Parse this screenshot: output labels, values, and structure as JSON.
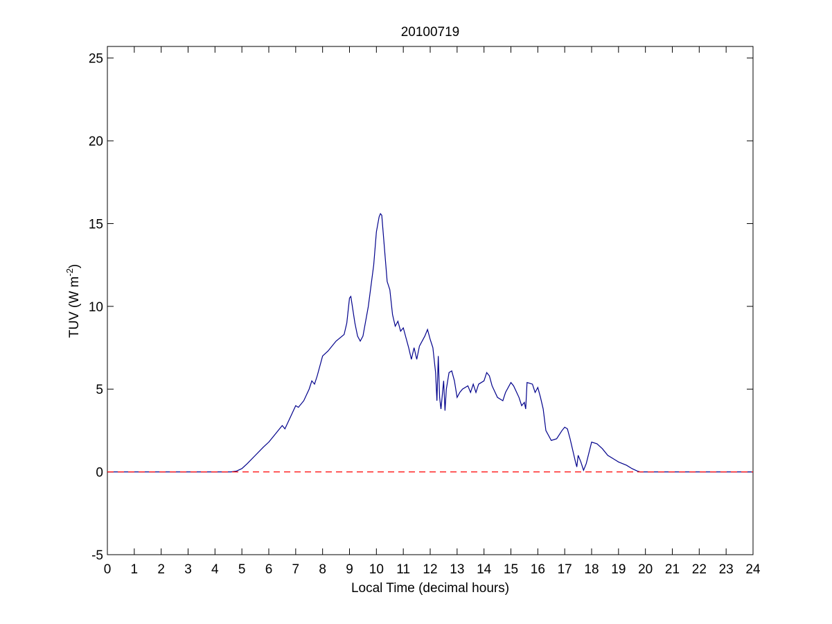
{
  "chart_data": {
    "type": "line",
    "title": "20100719",
    "xlabel": "Local Time (decimal hours)",
    "ylabel": {
      "text": "TUV (W m",
      "sup": "-2",
      "end": ")"
    },
    "xlim": [
      0,
      24
    ],
    "ylim": [
      -5,
      25.7
    ],
    "xticks": [
      0,
      1,
      2,
      3,
      4,
      5,
      6,
      7,
      8,
      9,
      10,
      11,
      12,
      13,
      14,
      15,
      16,
      17,
      18,
      19,
      20,
      21,
      22,
      23,
      24
    ],
    "yticks": [
      -5,
      0,
      5,
      10,
      15,
      20,
      25
    ],
    "grid": false,
    "x": [
      0,
      4.6,
      4.8,
      5.0,
      5.2,
      5.5,
      5.8,
      6.0,
      6.2,
      6.4,
      6.5,
      6.6,
      6.8,
      7.0,
      7.1,
      7.3,
      7.5,
      7.6,
      7.7,
      7.8,
      8.0,
      8.2,
      8.5,
      8.8,
      8.9,
      9.0,
      9.05,
      9.2,
      9.3,
      9.4,
      9.5,
      9.7,
      9.9,
      10.0,
      10.1,
      10.15,
      10.2,
      10.3,
      10.4,
      10.5,
      10.6,
      10.7,
      10.8,
      10.9,
      11.0,
      11.1,
      11.2,
      11.3,
      11.4,
      11.5,
      11.6,
      11.8,
      11.9,
      12.0,
      12.1,
      12.2,
      12.25,
      12.3,
      12.35,
      12.4,
      12.5,
      12.55,
      12.6,
      12.7,
      12.8,
      12.9,
      13.0,
      13.1,
      13.2,
      13.4,
      13.5,
      13.6,
      13.7,
      13.8,
      14.0,
      14.1,
      14.2,
      14.3,
      14.5,
      14.7,
      14.8,
      15.0,
      15.1,
      15.3,
      15.4,
      15.5,
      15.55,
      15.6,
      15.8,
      15.9,
      16.0,
      16.1,
      16.2,
      16.3,
      16.5,
      16.7,
      16.9,
      17.0,
      17.1,
      17.2,
      17.4,
      17.45,
      17.5,
      17.6,
      17.7,
      17.8,
      18.0,
      18.2,
      18.4,
      18.6,
      18.8,
      19.0,
      19.3,
      19.5,
      19.7,
      19.8,
      24
    ],
    "series": [
      {
        "color": "#00008b",
        "values": [
          0,
          0,
          0.05,
          0.2,
          0.5,
          1.0,
          1.5,
          1.8,
          2.2,
          2.6,
          2.8,
          2.6,
          3.3,
          4.0,
          3.9,
          4.3,
          5.0,
          5.5,
          5.3,
          5.8,
          7.0,
          7.3,
          7.9,
          8.3,
          9.0,
          10.5,
          10.6,
          9.0,
          8.2,
          7.9,
          8.2,
          10.0,
          12.5,
          14.5,
          15.4,
          15.6,
          15.5,
          13.5,
          11.5,
          11.0,
          9.5,
          8.8,
          9.1,
          8.5,
          8.7,
          8.1,
          7.5,
          6.8,
          7.5,
          6.8,
          7.6,
          8.2,
          8.6,
          8.0,
          7.5,
          6.0,
          4.3,
          7.0,
          4.5,
          3.8,
          5.5,
          3.7,
          5.0,
          6.0,
          6.1,
          5.5,
          4.5,
          4.8,
          5.0,
          5.2,
          4.8,
          5.3,
          4.8,
          5.3,
          5.5,
          6.0,
          5.8,
          5.2,
          4.5,
          4.3,
          4.8,
          5.4,
          5.2,
          4.5,
          4.0,
          4.2,
          3.8,
          5.4,
          5.3,
          4.8,
          5.1,
          4.5,
          3.8,
          2.5,
          1.9,
          2.0,
          2.5,
          2.7,
          2.6,
          2.0,
          0.6,
          0.3,
          1.0,
          0.6,
          0.1,
          0.5,
          1.8,
          1.7,
          1.4,
          1.0,
          0.8,
          0.6,
          0.4,
          0.2,
          0.05,
          0,
          0
        ]
      }
    ],
    "ref_line": {
      "y": 0,
      "color": "#ff0000",
      "dashed": true
    }
  }
}
